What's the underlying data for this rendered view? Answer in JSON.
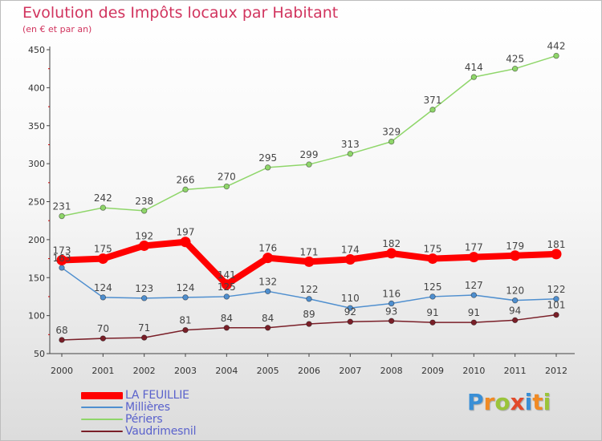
{
  "title": "Evolution des Impôts locaux par Habitant",
  "subtitle": "(en € et par an)",
  "logo": {
    "text": "Proxiti",
    "letters": [
      {
        "ch": "P",
        "color": "#3a8fd6"
      },
      {
        "ch": "r",
        "color": "#f08a24"
      },
      {
        "ch": "o",
        "color": "#9ac43a"
      },
      {
        "ch": "x",
        "color": "#e24a2a"
      },
      {
        "ch": "i",
        "color": "#3a8fd6"
      },
      {
        "ch": "t",
        "color": "#f08a24"
      },
      {
        "ch": "i",
        "color": "#9ac43a"
      }
    ]
  },
  "chart_data": {
    "type": "line",
    "x": [
      "2000",
      "2001",
      "2002",
      "2003",
      "2004",
      "2005",
      "2006",
      "2007",
      "2008",
      "2009",
      "2010",
      "2011",
      "2012"
    ],
    "ylim": [
      50,
      450
    ],
    "yticks": [
      "50",
      "100",
      "150",
      "200",
      "250",
      "300",
      "350",
      "400",
      "450"
    ],
    "grid": false,
    "legend_position": "bottom-left",
    "series": [
      {
        "name": "LA FEUILLIE",
        "color": "#ff0000",
        "values": [
          173,
          175,
          192,
          197,
          141,
          176,
          171,
          174,
          182,
          175,
          177,
          179,
          181
        ],
        "labels": [
          "173",
          "175",
          "192",
          "197",
          "141",
          "176",
          "171",
          "174",
          "182",
          "175",
          "177",
          "179",
          "181"
        ]
      },
      {
        "name": "Millières",
        "color": "#4f8fcf",
        "values": [
          163,
          124,
          123,
          124,
          125,
          132,
          122,
          110,
          116,
          125,
          127,
          120,
          122
        ],
        "labels": [
          "163",
          "124",
          "123",
          "124",
          "125",
          "132",
          "122",
          "110",
          "116",
          "125",
          "127",
          "120",
          "122"
        ]
      },
      {
        "name": "Périers",
        "color": "#8fd66a",
        "values": [
          231,
          242,
          238,
          266,
          270,
          295,
          299,
          313,
          329,
          371,
          414,
          425,
          442
        ],
        "labels": [
          "231",
          "242",
          "238",
          "266",
          "270",
          "295",
          "299",
          "313",
          "329",
          "371",
          "414",
          "425",
          "442"
        ]
      },
      {
        "name": "Vaudrimesnil",
        "color": "#7a1f28",
        "values": [
          68,
          70,
          71,
          81,
          84,
          84,
          89,
          92,
          93,
          91,
          91,
          94,
          101
        ],
        "labels": [
          "68",
          "70",
          "71",
          "81",
          "84",
          "84",
          "89",
          "92",
          "93",
          "91",
          "91",
          "94",
          "101"
        ]
      }
    ]
  }
}
